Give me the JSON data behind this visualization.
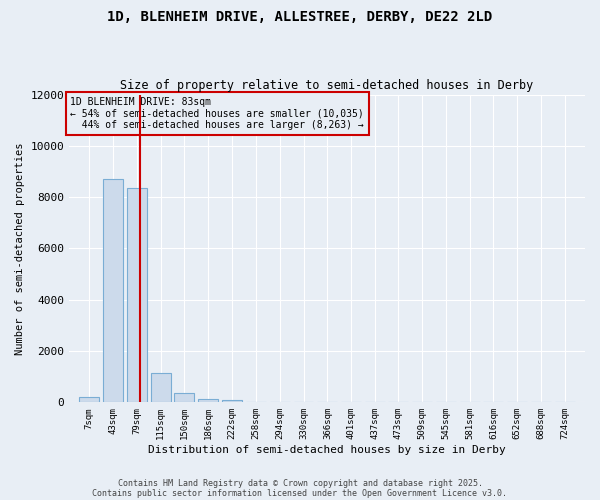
{
  "title_line1": "1D, BLENHEIM DRIVE, ALLESTREE, DERBY, DE22 2LD",
  "title_line2": "Size of property relative to semi-detached houses in Derby",
  "xlabel": "Distribution of semi-detached houses by size in Derby",
  "ylabel": "Number of semi-detached properties",
  "bin_labels": [
    "7sqm",
    "43sqm",
    "79sqm",
    "115sqm",
    "150sqm",
    "186sqm",
    "222sqm",
    "258sqm",
    "294sqm",
    "330sqm",
    "366sqm",
    "401sqm",
    "437sqm",
    "473sqm",
    "509sqm",
    "545sqm",
    "581sqm",
    "616sqm",
    "652sqm",
    "688sqm",
    "724sqm"
  ],
  "bin_centers": [
    7,
    43,
    79,
    115,
    150,
    186,
    222,
    258,
    294,
    330,
    366,
    401,
    437,
    473,
    509,
    545,
    581,
    616,
    652,
    688,
    724
  ],
  "bar_heights": [
    200,
    8700,
    8350,
    1150,
    350,
    130,
    80,
    0,
    0,
    0,
    0,
    0,
    0,
    0,
    0,
    0,
    0,
    0,
    0,
    0,
    0
  ],
  "bar_color": "#ccdaeb",
  "bar_edgecolor": "#7aadd4",
  "property_size": 83,
  "property_label": "1D BLENHEIM DRIVE: 83sqm",
  "smaller_pct": 54,
  "smaller_count": 10035,
  "larger_pct": 44,
  "larger_count": 8263,
  "vline_color": "#cc0000",
  "ylim": [
    0,
    12000
  ],
  "yticks": [
    0,
    2000,
    4000,
    6000,
    8000,
    10000,
    12000
  ],
  "bg_color": "#e8eef5",
  "grid_color": "#ffffff",
  "annotation_box_edgecolor": "#cc0000",
  "footer_line1": "Contains HM Land Registry data © Crown copyright and database right 2025.",
  "footer_line2": "Contains public sector information licensed under the Open Government Licence v3.0."
}
